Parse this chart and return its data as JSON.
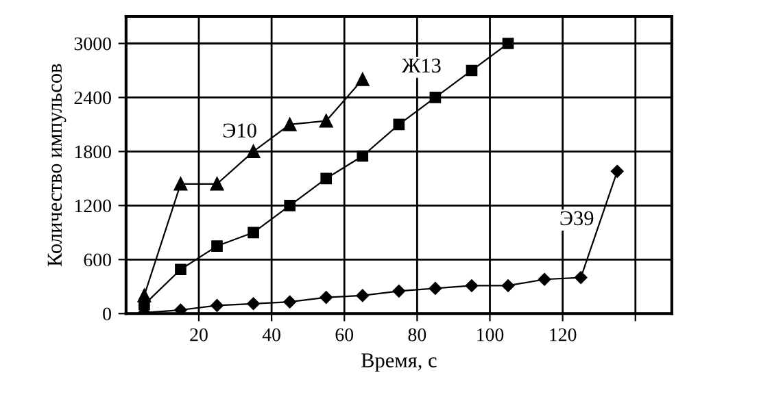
{
  "chart_data": {
    "type": "line",
    "xlabel": "Время, с",
    "ylabel": "Количество импульсов",
    "xlim": [
      0,
      150
    ],
    "xticks": [
      20,
      40,
      60,
      80,
      100,
      120,
      {
        "value": 140,
        "label": null
      }
    ],
    "ylim": [
      0,
      3300
    ],
    "yticks": [
      0,
      600,
      1200,
      1800,
      2400,
      3000
    ],
    "grid": true,
    "line_style": "solid",
    "series": [
      {
        "name": "Э10",
        "color": "#000000",
        "marker": "triangle",
        "x": [
          5,
          15,
          25,
          35,
          45,
          55,
          65
        ],
        "values": [
          200,
          1440,
          1440,
          1800,
          2100,
          2140,
          2600
        ]
      },
      {
        "name": "Ж13",
        "color": "#000000",
        "marker": "square",
        "x": [
          5,
          15,
          25,
          35,
          45,
          55,
          65,
          75,
          85,
          95,
          105
        ],
        "values": [
          100,
          490,
          750,
          900,
          1200,
          1500,
          1750,
          2100,
          2400,
          2700,
          3000
        ]
      },
      {
        "name": "Э39",
        "color": "#000000",
        "marker": "diamond",
        "x": [
          5,
          15,
          25,
          35,
          45,
          55,
          65,
          75,
          85,
          95,
          105,
          115,
          125,
          135
        ],
        "values": [
          10,
          40,
          90,
          110,
          130,
          180,
          200,
          250,
          280,
          310,
          310,
          380,
          400,
          1580
        ]
      }
    ]
  }
}
